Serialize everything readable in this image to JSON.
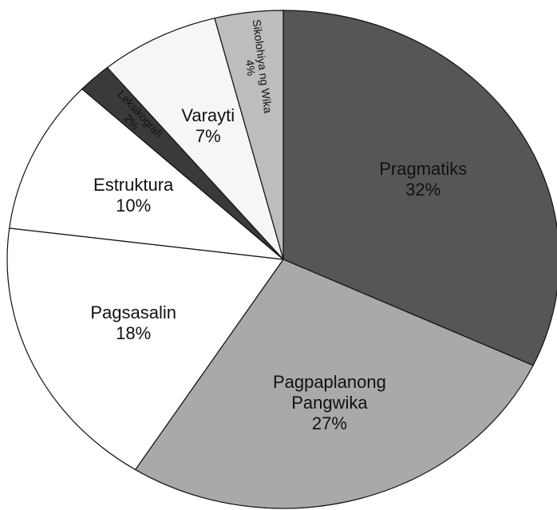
{
  "chart_data": {
    "type": "pie",
    "categories": [
      "Pragmatiks",
      "Pagpaplanong Pangwika",
      "Pagsasalin",
      "Estruktura",
      "Leksikografi",
      "Varayti",
      "Sikolohiya ng Wika"
    ],
    "values": [
      32,
      27,
      18,
      10,
      2,
      7,
      4
    ],
    "value_labels": [
      "32%",
      "27%",
      "18%",
      "10%",
      "2%",
      "7%",
      "4%"
    ],
    "colors": [
      "#565656",
      "#a9a9a9",
      "#ffffff",
      "#ffffff",
      "#3a3a3a",
      "#f6f6f6",
      "#bdbdbd"
    ]
  }
}
